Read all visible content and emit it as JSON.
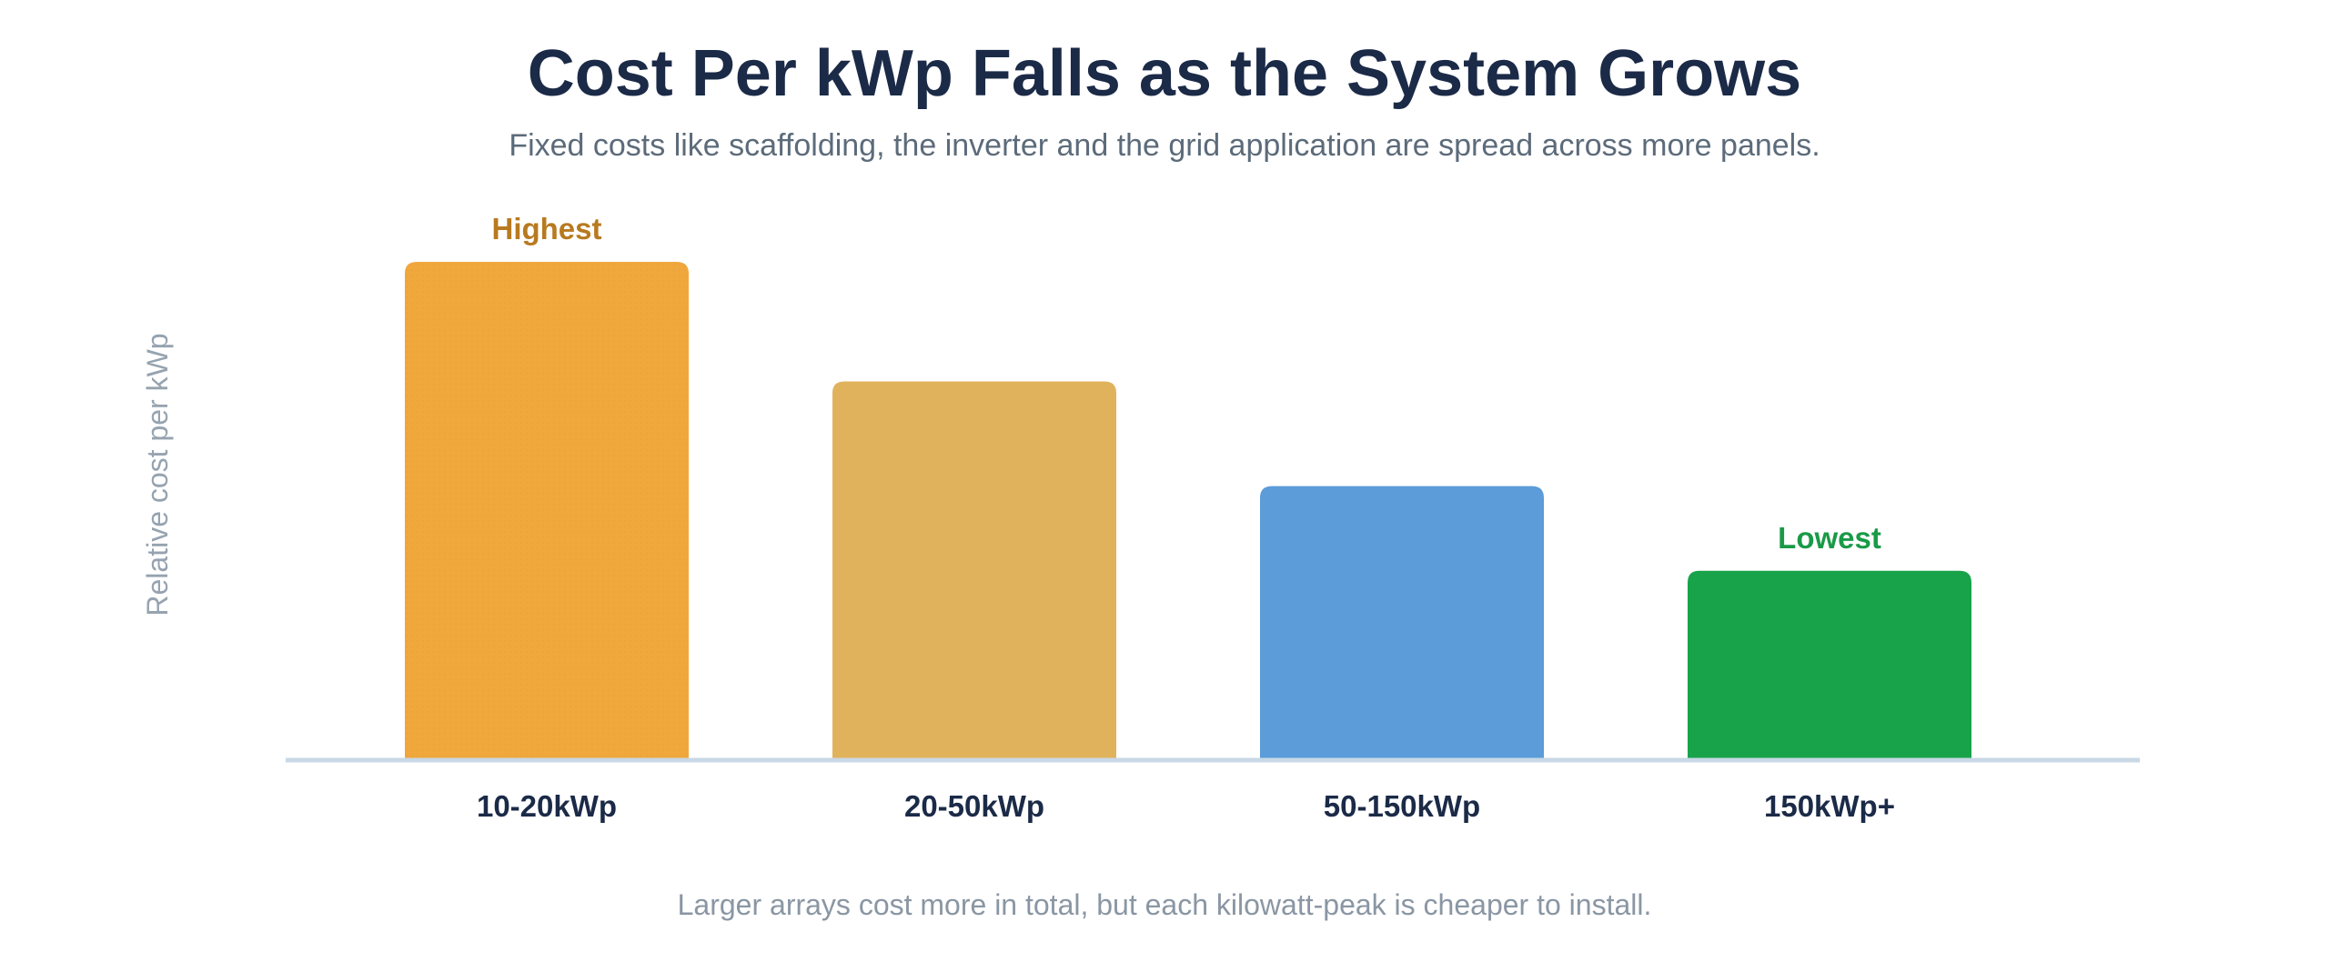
{
  "header": {
    "title": "Cost Per kWp Falls as the System Grows",
    "subtitle": "Fixed costs like scaffolding, the inverter and the grid application are spread across more panels."
  },
  "footer": {
    "note": "Larger arrays cost more in total, but each kilowatt-peak is cheaper to install."
  },
  "chart_data": {
    "type": "bar",
    "title": "Cost Per kWp Falls as the System Grows",
    "subtitle": "Fixed costs like scaffolding, the inverter and the grid application are spread across more panels.",
    "ylabel": "Relative cost per kWp",
    "xlabel": "",
    "categories": [
      "10-20kWp",
      "20-50kWp",
      "50-150kWp",
      "150kWp+"
    ],
    "values": [
      100,
      76,
      55,
      38
    ],
    "ylim": [
      0,
      100
    ],
    "colors": [
      "#f0a73c",
      "#e1b25c",
      "#5b9cd9",
      "#18a34a"
    ],
    "annotations": [
      {
        "category": "10-20kWp",
        "text": "Highest",
        "color": "#b87a20"
      },
      {
        "category": "150kWp+",
        "text": "Lowest",
        "color": "#1a9a47"
      }
    ],
    "axis_color": "#c8d8e6",
    "tick_label_color": "#1b2a47",
    "ylabel_color": "#96a3b0",
    "grid": false,
    "legend": "none"
  }
}
